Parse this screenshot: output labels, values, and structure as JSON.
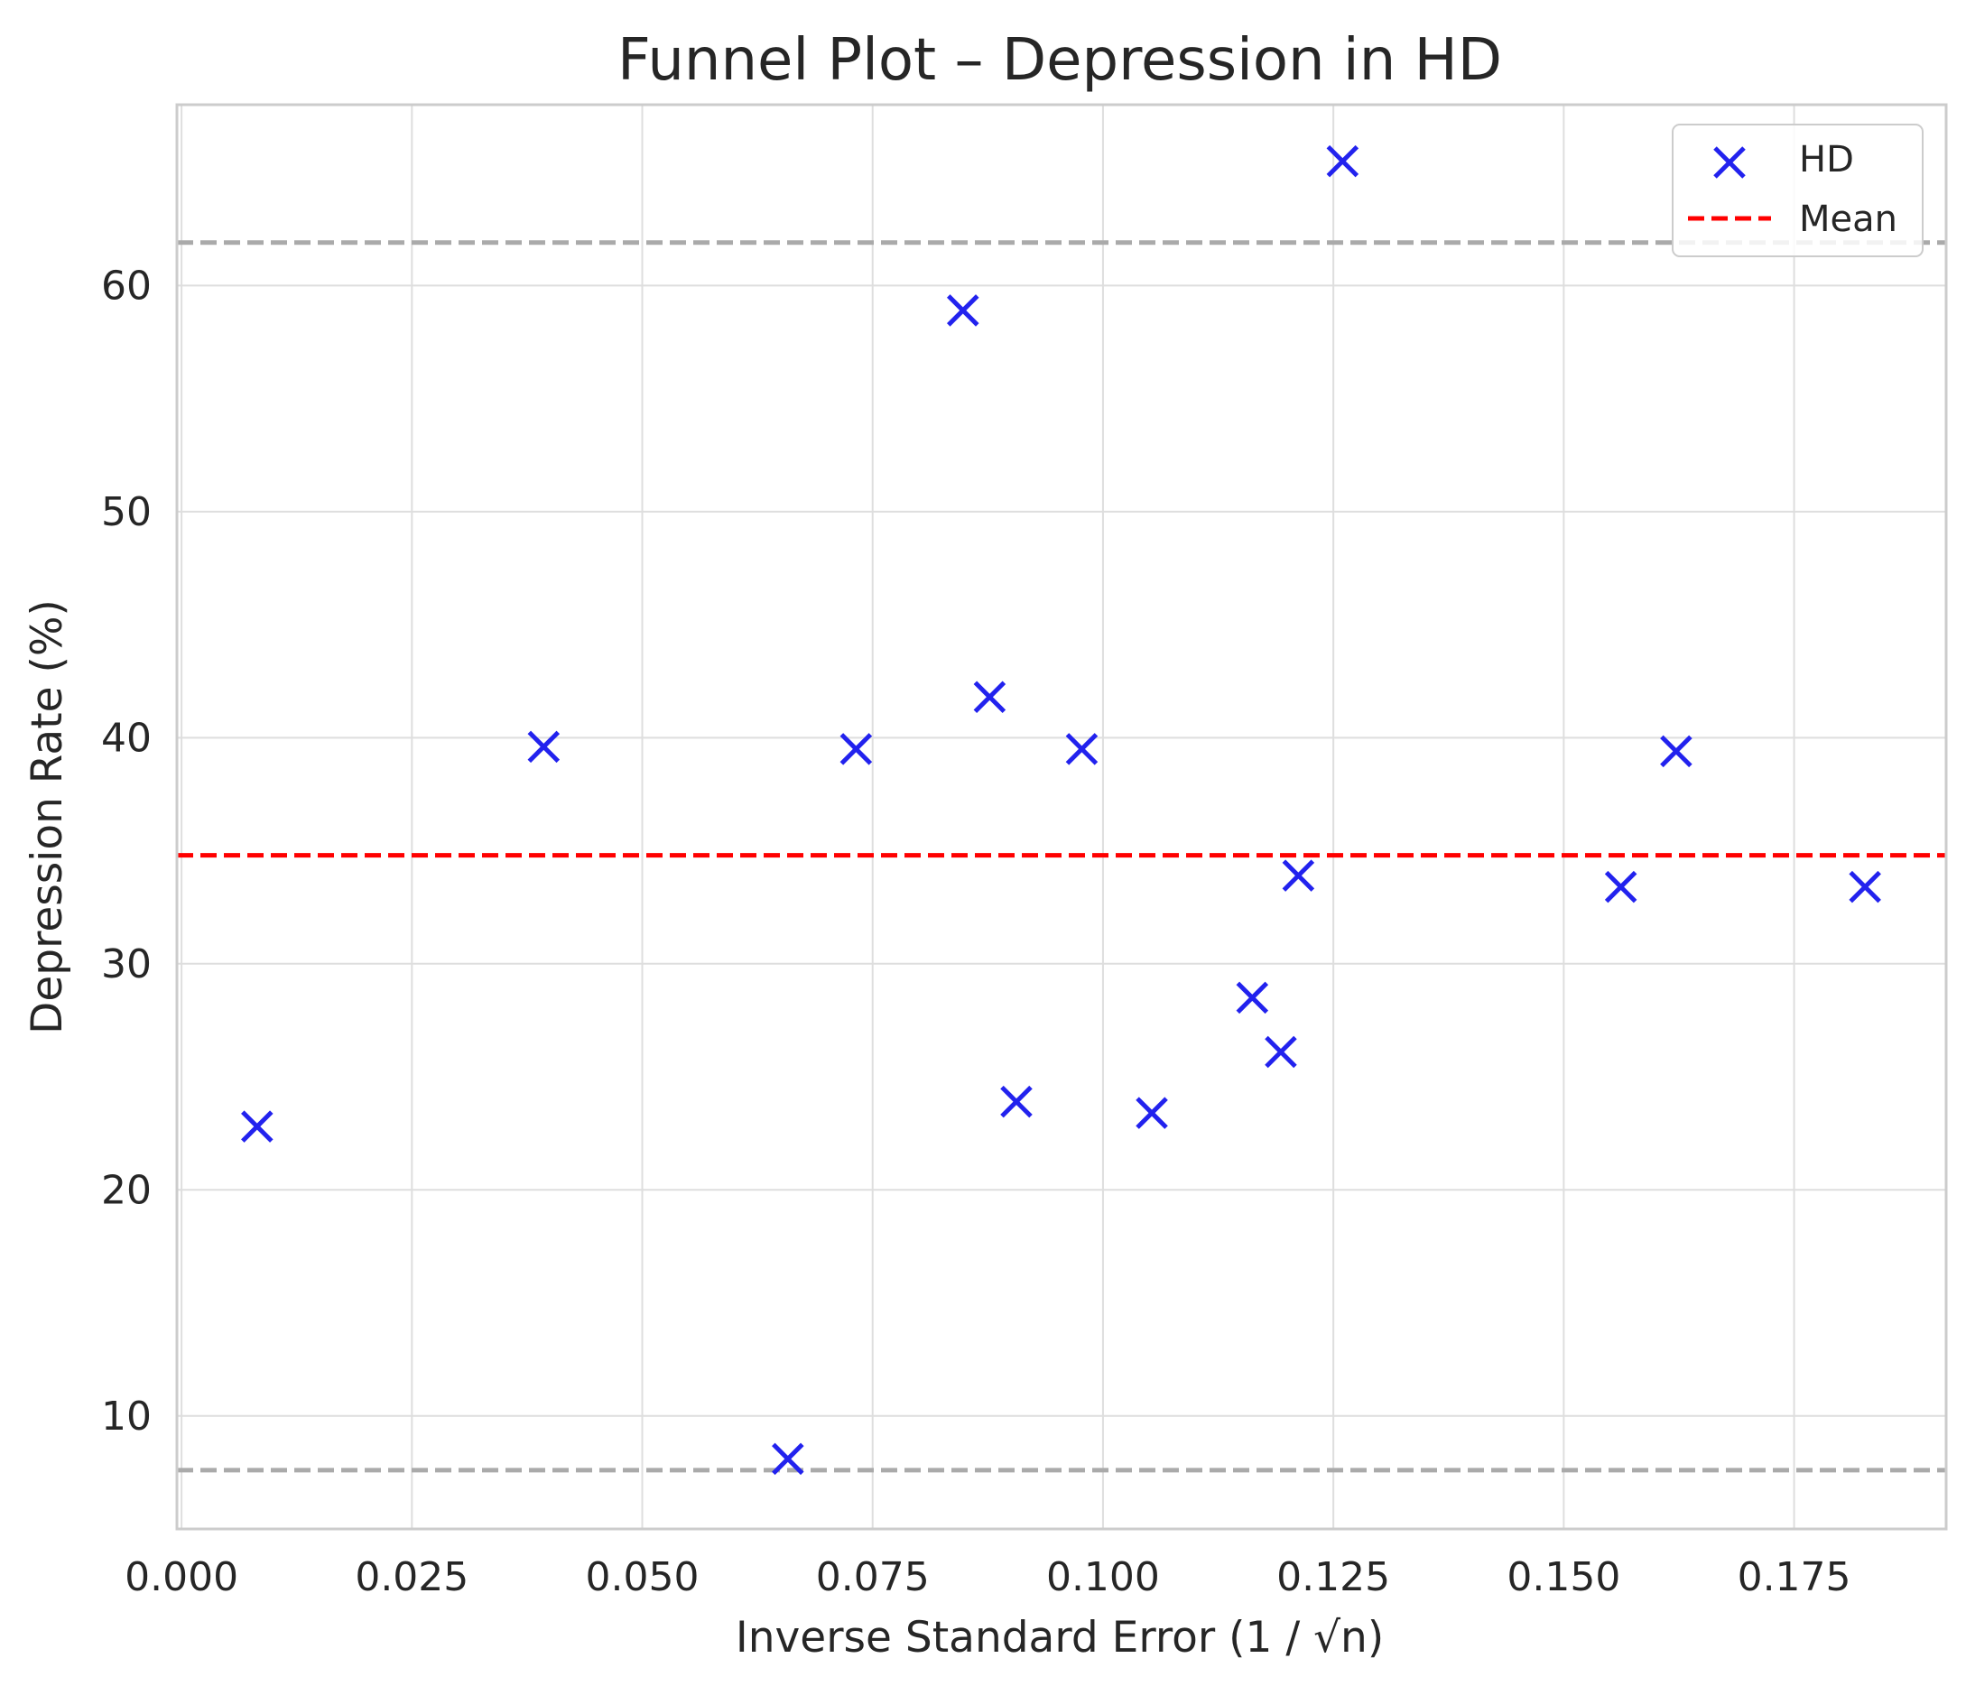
{
  "chart_data": {
    "type": "scatter",
    "title": "Funnel Plot – Depression in HD",
    "xlabel": "Inverse Standard Error (1 / √n)",
    "ylabel": "Depression Rate (%)",
    "xlim": [
      -0.0005,
      0.1915
    ],
    "ylim": [
      5.0,
      68.0
    ],
    "xticks": [
      0.0,
      0.025,
      0.05,
      0.075,
      0.1,
      0.125,
      0.15,
      0.175
    ],
    "xtick_labels": [
      "0.000",
      "0.025",
      "0.050",
      "0.075",
      "0.100",
      "0.125",
      "0.150",
      "0.175"
    ],
    "yticks": [
      10,
      20,
      30,
      40,
      50,
      60
    ],
    "ytick_labels": [
      "10",
      "20",
      "30",
      "40",
      "50",
      "60"
    ],
    "grid": true,
    "legend_position": "top-right",
    "series": [
      {
        "name": "HD",
        "marker": "x",
        "color": "#2222ee",
        "points": [
          {
            "x": 0.0082,
            "y": 22.8
          },
          {
            "x": 0.0393,
            "y": 39.6
          },
          {
            "x": 0.0658,
            "y": 8.1
          },
          {
            "x": 0.0732,
            "y": 39.5
          },
          {
            "x": 0.0848,
            "y": 58.9
          },
          {
            "x": 0.0877,
            "y": 41.8
          },
          {
            "x": 0.0906,
            "y": 23.9
          },
          {
            "x": 0.0977,
            "y": 39.5
          },
          {
            "x": 0.1053,
            "y": 23.4
          },
          {
            "x": 0.1162,
            "y": 28.5
          },
          {
            "x": 0.1193,
            "y": 26.1
          },
          {
            "x": 0.1212,
            "y": 33.9
          },
          {
            "x": 0.126,
            "y": 65.5
          },
          {
            "x": 0.1562,
            "y": 33.4
          },
          {
            "x": 0.1622,
            "y": 39.4
          },
          {
            "x": 0.1827,
            "y": 33.4
          }
        ]
      }
    ],
    "reference_lines": [
      {
        "name": "Mean",
        "y": 34.8,
        "color": "#ff0000",
        "style": "dashed",
        "in_legend": true
      },
      {
        "name": "Upper limit",
        "y": 61.9,
        "color": "#aaaaaa",
        "style": "dashed",
        "in_legend": false
      },
      {
        "name": "Lower limit",
        "y": 7.6,
        "color": "#aaaaaa",
        "style": "dashed",
        "in_legend": false
      }
    ],
    "legend": [
      {
        "label": "HD",
        "kind": "marker"
      },
      {
        "label": "Mean",
        "kind": "line"
      }
    ]
  }
}
